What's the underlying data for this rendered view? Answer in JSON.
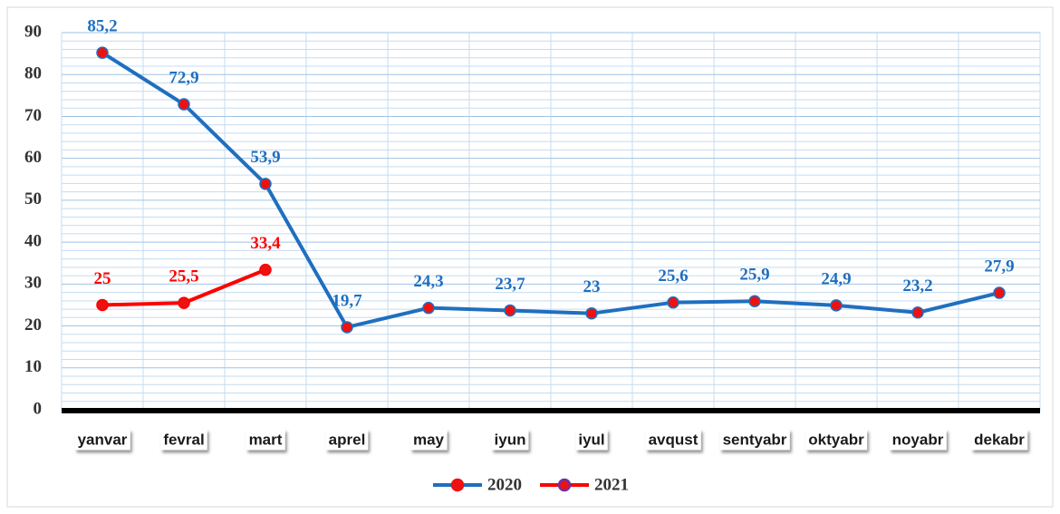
{
  "chart_data": {
    "type": "line",
    "categories": [
      "yanvar",
      "fevral",
      "mart",
      "aprel",
      "may",
      "iyun",
      "iyul",
      "avqust",
      "sentyabr",
      "oktyabr",
      "noyabr",
      "dekabr"
    ],
    "series": [
      {
        "name": "2020",
        "color": "#1f6fbf",
        "marker_color": "#ee1111",
        "values": [
          85.2,
          72.9,
          53.9,
          19.7,
          24.3,
          23.7,
          23,
          25.6,
          25.9,
          24.9,
          23.2,
          27.9
        ],
        "value_labels": [
          "85,2",
          "72,9",
          "53,9",
          "19,7",
          "24,3",
          "23,7",
          "23",
          "25,6",
          "25,9",
          "24,9",
          "23,2",
          "27,9"
        ]
      },
      {
        "name": "2021",
        "color": "#ff0000",
        "marker_color": "#7030a0",
        "values": [
          25,
          25.5,
          33.4,
          null,
          null,
          null,
          null,
          null,
          null,
          null,
          null,
          null
        ],
        "value_labels": [
          "25",
          "25,5",
          "33,4",
          null,
          null,
          null,
          null,
          null,
          null,
          null,
          null,
          null
        ]
      }
    ],
    "ylim": [
      0,
      90
    ],
    "yticks": [
      0,
      10,
      20,
      30,
      40,
      50,
      60,
      70,
      80,
      90
    ],
    "grid": true,
    "legend": "bottom"
  }
}
